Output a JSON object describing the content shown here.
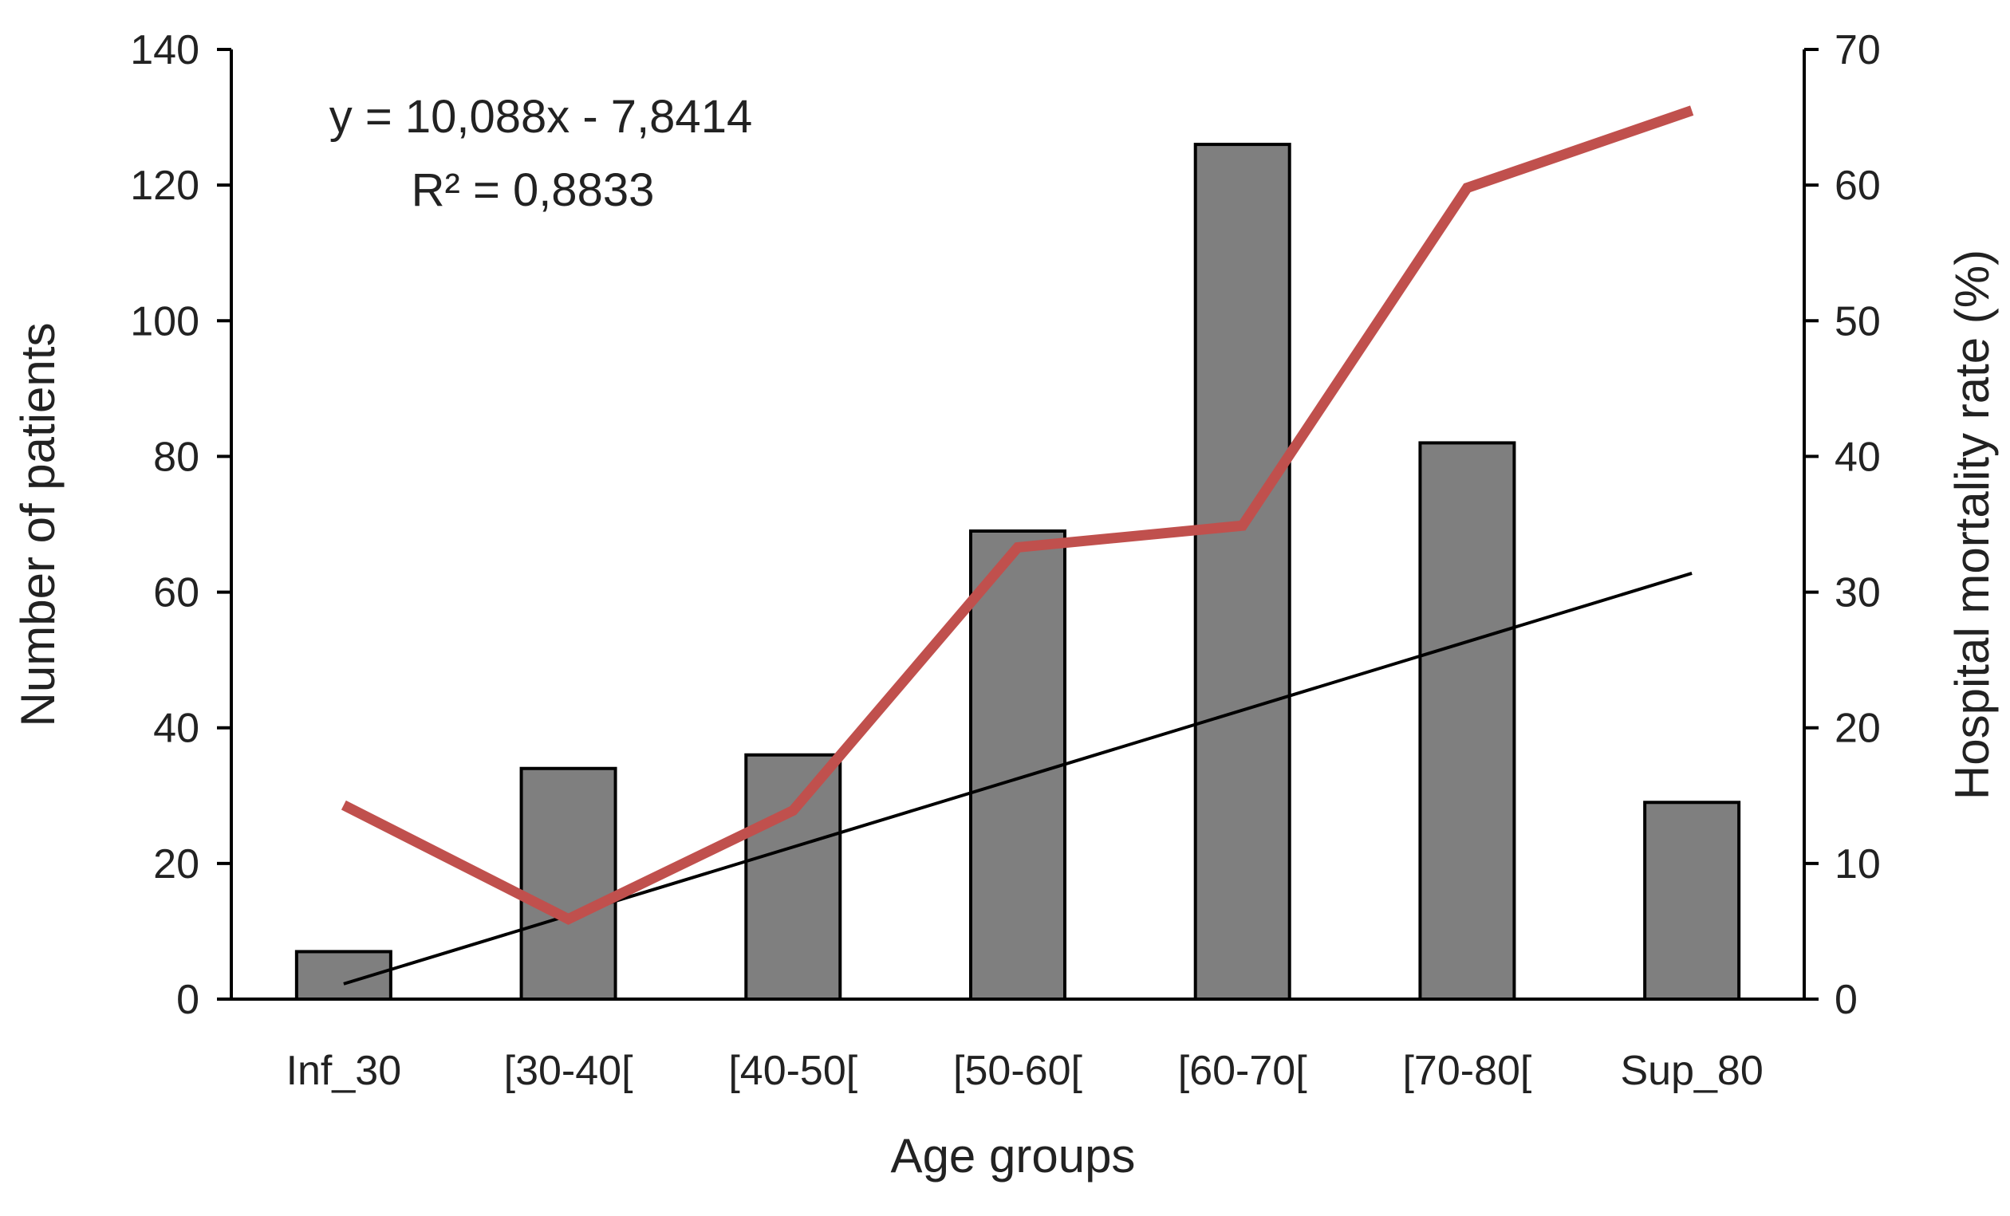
{
  "chart_data": {
    "type": "bar",
    "categories": [
      "Inf_30",
      "[30-40[",
      "[40-50[",
      "[50-60[",
      "[60-70[",
      "[70-80[",
      "Sup_80"
    ],
    "xlabel": "Age groups",
    "ylabel": "Number of patients",
    "y2label": "Hospital mortality rate (%)",
    "ylim": [
      0,
      140
    ],
    "y2lim": [
      0,
      70
    ],
    "yticks": [
      0,
      20,
      40,
      60,
      80,
      100,
      120,
      140
    ],
    "y2ticks": [
      0,
      10,
      20,
      30,
      40,
      50,
      60,
      70
    ],
    "grid": false,
    "series": [
      {
        "type": "bar",
        "axis": "left",
        "color": "#7f7f7f",
        "values": [
          7,
          34,
          36,
          69,
          126,
          82,
          29
        ]
      },
      {
        "type": "line",
        "axis": "right",
        "color": "#c0504d",
        "values": [
          14.3,
          5.9,
          13.9,
          33.3,
          34.9,
          59.8,
          65.5
        ]
      },
      {
        "type": "trendline",
        "axis": "left",
        "color": "#000000",
        "slope": 10.088,
        "intercept": -7.8414
      }
    ],
    "annotations": {
      "equation": "y = 10,088x - 7,8414",
      "r_squared": "R² = 0,8833"
    }
  }
}
